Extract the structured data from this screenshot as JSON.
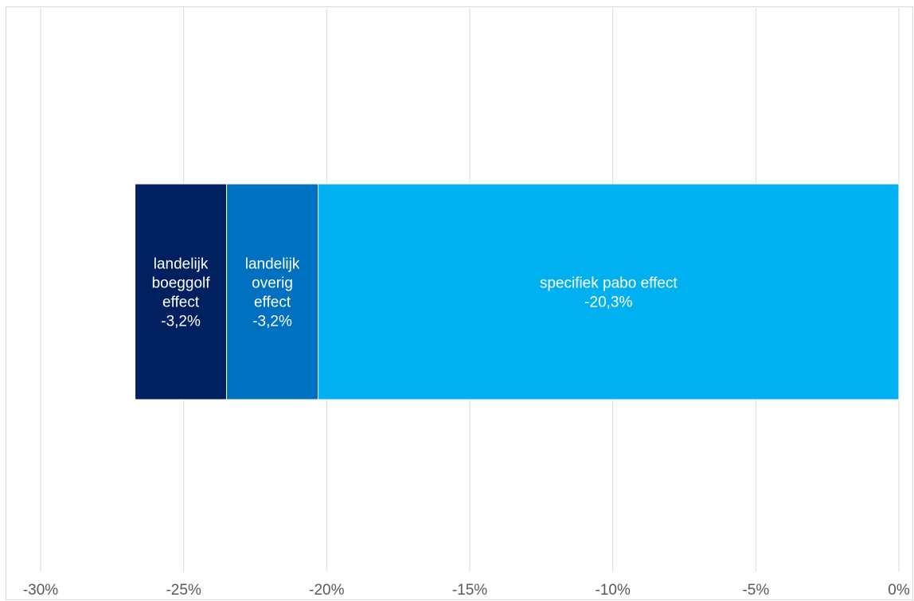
{
  "chart_data": {
    "type": "bar",
    "orientation": "horizontal",
    "stacked": true,
    "title": "",
    "xlabel": "",
    "ylabel": "",
    "xlim": [
      -30,
      0
    ],
    "x_ticks": [
      -30,
      -25,
      -20,
      -15,
      -10,
      -5,
      0
    ],
    "x_tick_labels": [
      "-30%",
      "-25%",
      "-20%",
      "-15%",
      "-10%",
      "-5%",
      "0%"
    ],
    "grid": "vertical",
    "legend": "none",
    "categories": [
      ""
    ],
    "series": [
      {
        "label_lines": [
          "landelijk",
          "boeggolf",
          "effect",
          "-3,2%"
        ],
        "values": [
          -3.2
        ],
        "color": "#002060"
      },
      {
        "label_lines": [
          "landelijk",
          "overig",
          "effect",
          "-3,2%"
        ],
        "values": [
          -3.2
        ],
        "color": "#0070C0"
      },
      {
        "label_lines": [
          "specifiek  pabo effect",
          "-20,3%"
        ],
        "values": [
          -20.3
        ],
        "color": "#00B0F0"
      }
    ]
  }
}
